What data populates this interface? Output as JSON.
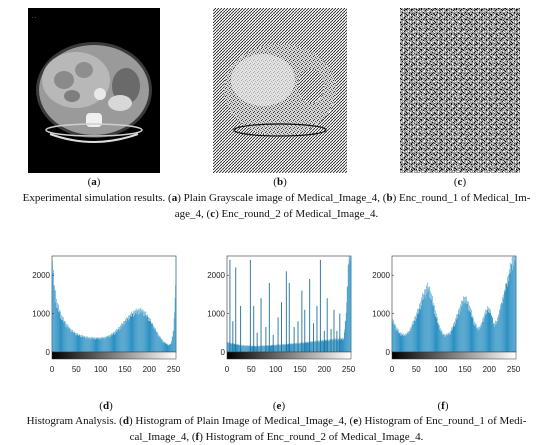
{
  "figure1": {
    "labels": [
      "(a)",
      "(b)",
      "(c)"
    ],
    "letters": [
      "a",
      "b",
      "c"
    ],
    "caption_parts": [
      {
        "t": "Experimental simulation results. ("
      },
      {
        "t": "a",
        "b": true
      },
      {
        "t": ") Plain Grayscale image of Medical_Image_4, ("
      },
      {
        "t": "b",
        "b": true
      },
      {
        "t": ") Enc_round_1 of Medical_Im-"
      },
      {
        "t": "age_4, ("
      },
      {
        "t": "c",
        "b": true
      },
      {
        "t": ") Enc_round_2 of Medical_Image_4."
      }
    ]
  },
  "figure2": {
    "labels": [
      "(d)",
      "(e)",
      "(f)"
    ],
    "letters": [
      "d",
      "e",
      "f"
    ],
    "caption_parts": [
      {
        "t": "Histogram Analysis. ("
      },
      {
        "t": "d",
        "b": true
      },
      {
        "t": ") Histogram of Plain Image of Medical_Image_4, ("
      },
      {
        "t": "e",
        "b": true
      },
      {
        "t": ") Histogram of Enc_round_1 of Medi-"
      },
      {
        "t": "cal_Image_4, ("
      },
      {
        "t": "f",
        "b": true
      },
      {
        "t": ") Histogram of Enc_round_2 of Medical_Image_4."
      }
    ]
  },
  "chart_data": [
    {
      "type": "bar",
      "x_ticks": [
        0,
        50,
        100,
        150,
        200,
        250
      ],
      "y_ticks": [
        0,
        1000,
        2000
      ],
      "xlim": [
        0,
        255
      ],
      "ylim": [
        0,
        2500
      ],
      "bar_color": "#2a8fc2",
      "profile": [
        [
          0,
          2400
        ],
        [
          5,
          1700
        ],
        [
          10,
          1250
        ],
        [
          20,
          900
        ],
        [
          30,
          700
        ],
        [
          40,
          560
        ],
        [
          50,
          470
        ],
        [
          60,
          420
        ],
        [
          75,
          370
        ],
        [
          90,
          360
        ],
        [
          100,
          360
        ],
        [
          110,
          380
        ],
        [
          120,
          430
        ],
        [
          130,
          520
        ],
        [
          140,
          650
        ],
        [
          150,
          800
        ],
        [
          160,
          940
        ],
        [
          170,
          1040
        ],
        [
          180,
          1080
        ],
        [
          185,
          1070
        ],
        [
          190,
          1020
        ],
        [
          200,
          870
        ],
        [
          210,
          640
        ],
        [
          220,
          420
        ],
        [
          230,
          260
        ],
        [
          240,
          180
        ],
        [
          245,
          220
        ],
        [
          250,
          600
        ],
        [
          253,
          1300
        ],
        [
          255,
          2400
        ]
      ]
    },
    {
      "type": "bar",
      "x_ticks": [
        0,
        50,
        100,
        150,
        200,
        250
      ],
      "y_ticks": [
        0,
        1000,
        2000
      ],
      "xlim": [
        0,
        255
      ],
      "ylim": [
        0,
        2500
      ],
      "bar_color": "#2a8fc2",
      "profile": [
        [
          0,
          250
        ],
        [
          30,
          170
        ],
        [
          60,
          150
        ],
        [
          100,
          180
        ],
        [
          150,
          230
        ],
        [
          200,
          300
        ],
        [
          240,
          350
        ],
        [
          245,
          1000
        ],
        [
          250,
          2500
        ],
        [
          255,
          2500
        ]
      ],
      "spikes": [
        [
          6,
          2400
        ],
        [
          12,
          800
        ],
        [
          18,
          2200
        ],
        [
          28,
          1200
        ],
        [
          48,
          2400
        ],
        [
          55,
          1200
        ],
        [
          62,
          500
        ],
        [
          70,
          1400
        ],
        [
          80,
          650
        ],
        [
          87,
          1800
        ],
        [
          95,
          450
        ],
        [
          105,
          900
        ],
        [
          112,
          1300
        ],
        [
          122,
          2100
        ],
        [
          128,
          1800
        ],
        [
          138,
          650
        ],
        [
          146,
          800
        ],
        [
          154,
          1600
        ],
        [
          160,
          1100
        ],
        [
          170,
          1900
        ],
        [
          178,
          750
        ],
        [
          185,
          1200
        ],
        [
          192,
          2400
        ],
        [
          200,
          550
        ],
        [
          206,
          1400
        ],
        [
          214,
          600
        ],
        [
          220,
          1100
        ],
        [
          226,
          550
        ],
        [
          232,
          1000
        ]
      ]
    },
    {
      "type": "bar",
      "x_ticks": [
        0,
        50,
        100,
        150,
        200,
        250
      ],
      "y_ticks": [
        0,
        1000,
        2000
      ],
      "xlim": [
        0,
        255
      ],
      "ylim": [
        0,
        2500
      ],
      "bar_color": "#2a8fc2",
      "profile": [
        [
          0,
          850
        ],
        [
          8,
          650
        ],
        [
          15,
          500
        ],
        [
          25,
          430
        ],
        [
          35,
          520
        ],
        [
          45,
          800
        ],
        [
          55,
          1100
        ],
        [
          62,
          1400
        ],
        [
          68,
          1560
        ],
        [
          72,
          1680
        ],
        [
          76,
          1650
        ],
        [
          80,
          1500
        ],
        [
          88,
          1100
        ],
        [
          96,
          700
        ],
        [
          104,
          470
        ],
        [
          110,
          430
        ],
        [
          120,
          500
        ],
        [
          130,
          800
        ],
        [
          140,
          1150
        ],
        [
          148,
          1400
        ],
        [
          154,
          1330
        ],
        [
          160,
          1150
        ],
        [
          168,
          800
        ],
        [
          176,
          600
        ],
        [
          182,
          650
        ],
        [
          190,
          950
        ],
        [
          198,
          1150
        ],
        [
          204,
          1000
        ],
        [
          210,
          700
        ],
        [
          216,
          800
        ],
        [
          224,
          1200
        ],
        [
          232,
          1600
        ],
        [
          240,
          2000
        ],
        [
          246,
          2300
        ],
        [
          250,
          2450
        ],
        [
          255,
          2500
        ]
      ]
    }
  ]
}
